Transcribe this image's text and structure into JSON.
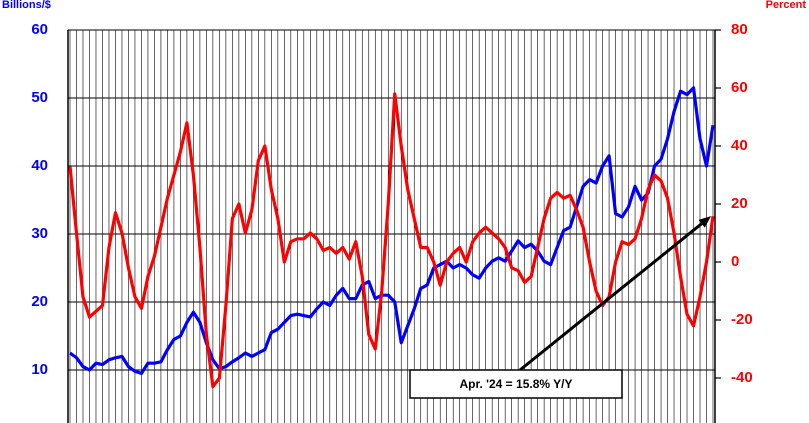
{
  "chart_data": {
    "type": "line",
    "y_label": "Billions/$",
    "y2_label": "Percent",
    "annotation": "Apr. '24 = 15.8% Y/Y",
    "categories": [
      null,
      null,
      null,
      null,
      null,
      null,
      null,
      null,
      null,
      null,
      null,
      null,
      null,
      null,
      null,
      null,
      null,
      null,
      null,
      null,
      null,
      null,
      null,
      null,
      null,
      null,
      null,
      null,
      null,
      null,
      null,
      null,
      null,
      null,
      null,
      null,
      null,
      null,
      null,
      null,
      null,
      null,
      null,
      null,
      null,
      null,
      null,
      null,
      null,
      null,
      null,
      null,
      null,
      null,
      null,
      null,
      null,
      null,
      null,
      null,
      null,
      null,
      null,
      null,
      null,
      null,
      null,
      null,
      null,
      null,
      null,
      null,
      null,
      null,
      null,
      null,
      null,
      null,
      null,
      null,
      null,
      null,
      null,
      null,
      null,
      null,
      null,
      null,
      null,
      null,
      null,
      null,
      null,
      null,
      null,
      null,
      null,
      null,
      null,
      null
    ],
    "series": [
      {
        "color": "#0000ff",
        "values": [
          12.5,
          11.8,
          10.5,
          10,
          11,
          10.8,
          11.5,
          11.8,
          12,
          10.5,
          9.8,
          9.5,
          11,
          11,
          11.2,
          13,
          14.5,
          15,
          17,
          18.5,
          17,
          14,
          11.5,
          10.2,
          10.5,
          11.2,
          11.8,
          12.5,
          12,
          12.5,
          13,
          15.5,
          16,
          17,
          18,
          18.2,
          18,
          17.8,
          19,
          20,
          19.5,
          21,
          22,
          20.5,
          20.5,
          22.5,
          23,
          20.5,
          21,
          21,
          20,
          14,
          16.5,
          19,
          22,
          22.5,
          25,
          25.5,
          26,
          25,
          25.5,
          25,
          24,
          23.5,
          25,
          26,
          26.5,
          26,
          27.5,
          29,
          28,
          28.5,
          27.5,
          26,
          25.5,
          28,
          30.5,
          31,
          34,
          37,
          38,
          37.5,
          40,
          41.5,
          33,
          32.5,
          34,
          37,
          35,
          36,
          40,
          41,
          44,
          48,
          51,
          50.5,
          51.5,
          44,
          40,
          46
        ]
      },
      {
        "color": "#ff0000",
        "axis": "y2",
        "values": [
          33,
          10,
          -12,
          -19,
          -17,
          -15,
          5,
          17,
          10,
          -2,
          -12,
          -16,
          -5,
          2,
          12,
          22,
          30,
          38,
          48,
          30,
          5,
          -25,
          -43,
          -40,
          -15,
          15,
          20,
          10,
          18,
          35,
          40,
          25,
          15,
          0,
          7,
          8,
          8,
          10,
          8,
          4,
          5,
          3,
          5,
          1,
          7,
          -5,
          -25,
          -30,
          -10,
          20,
          58,
          40,
          25,
          15,
          5,
          5,
          0,
          -8,
          0,
          3,
          5,
          0,
          7,
          10,
          12,
          10,
          8,
          5,
          -2,
          -3,
          -7,
          -5,
          5,
          15,
          22,
          24,
          22,
          23,
          18,
          12,
          0,
          -10,
          -15,
          -12,
          0,
          7,
          6,
          8,
          15,
          25,
          30,
          28,
          22,
          10,
          -5,
          -18,
          -22,
          -12,
          0,
          15.8
        ]
      }
    ],
    "ylim": [
      2,
      60
    ],
    "yticks": [
      10,
      20,
      30,
      40,
      50,
      60
    ],
    "y2lim": [
      -56,
      80
    ],
    "y2ticks": [
      -40,
      -20,
      0,
      20,
      40,
      60,
      80
    ],
    "grid": true
  }
}
